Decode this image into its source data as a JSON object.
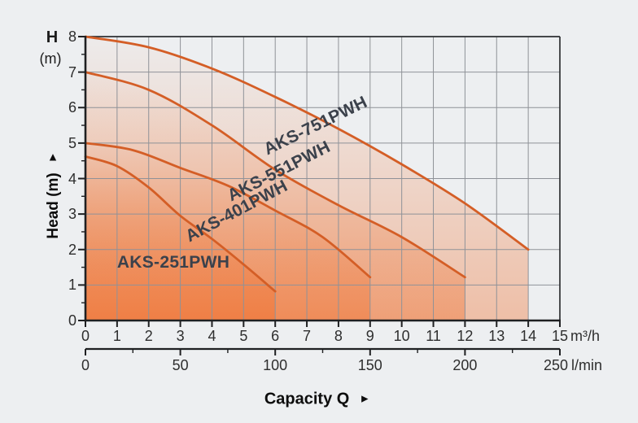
{
  "chart_data": {
    "type": "line",
    "xlabel": "Capacity Q",
    "ylabel": "Head (m)",
    "arrow_glyph": "►",
    "y_corner_label_line1": "H",
    "y_corner_label_line2": "(m)",
    "grid": true,
    "x_axis": {
      "unit": "m³/h",
      "range": [
        0,
        15
      ],
      "ticks": [
        0,
        1,
        2,
        3,
        4,
        5,
        6,
        7,
        8,
        9,
        10,
        11,
        12,
        13,
        14,
        15
      ]
    },
    "x_axis_secondary": {
      "unit": "l/min",
      "range": [
        0,
        250
      ],
      "tick_labels": [
        0,
        50,
        100,
        150,
        200,
        250
      ],
      "minor_step": 25
    },
    "y_axis": {
      "range": [
        0,
        8
      ],
      "ticks": [
        0,
        1,
        2,
        3,
        4,
        5,
        6,
        7,
        8
      ],
      "minor_step": 0.5
    },
    "series": [
      {
        "name": "AKS-751PWH",
        "points": [
          [
            0,
            8
          ],
          [
            2,
            7.7
          ],
          [
            4,
            7.1
          ],
          [
            6,
            6.3
          ],
          [
            8,
            5.4
          ],
          [
            10,
            4.4
          ],
          [
            12,
            3.3
          ],
          [
            14,
            2.0
          ]
        ]
      },
      {
        "name": "AKS-551PWH",
        "points": [
          [
            0,
            7
          ],
          [
            2,
            6.5
          ],
          [
            4,
            5.5
          ],
          [
            6,
            4.25
          ],
          [
            8,
            3.25
          ],
          [
            10,
            2.35
          ],
          [
            12,
            1.22
          ]
        ]
      },
      {
        "name": "AKS-401PWH",
        "points": [
          [
            0,
            5
          ],
          [
            1.5,
            4.8
          ],
          [
            3,
            4.3
          ],
          [
            4.5,
            3.8
          ],
          [
            6,
            3.1
          ],
          [
            7.5,
            2.35
          ],
          [
            9,
            1.22
          ]
        ]
      },
      {
        "name": "AKS-251PWH",
        "points": [
          [
            0,
            4.62
          ],
          [
            1,
            4.35
          ],
          [
            2,
            3.75
          ],
          [
            3,
            2.95
          ],
          [
            4,
            2.3
          ],
          [
            5,
            1.58
          ],
          [
            6,
            0.82
          ]
        ]
      }
    ],
    "colors": {
      "background": "#edeff1",
      "curve": "#d45e26",
      "fill": "#f06923",
      "grid": "#8f9298",
      "axis": "#1f2022",
      "border": "#2d2f32",
      "curve_label": "#3b414b",
      "tick_label": "#2e2e2e"
    }
  }
}
